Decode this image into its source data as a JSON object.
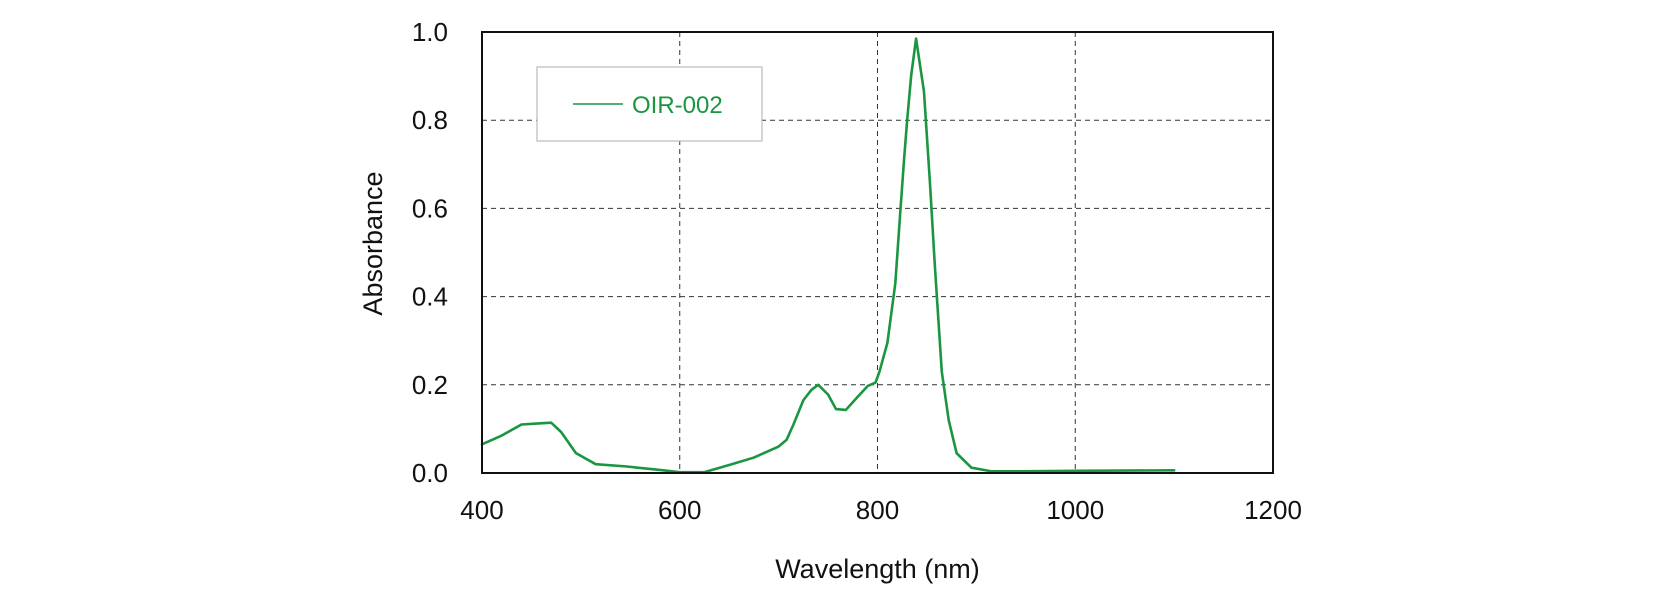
{
  "chart_data": {
    "type": "line",
    "title": "",
    "xlabel": "Wavelength (nm)",
    "ylabel": "Absorbance",
    "xlim": [
      400,
      1200
    ],
    "ylim": [
      0.0,
      1.0
    ],
    "x_ticks": [
      400,
      600,
      800,
      1000,
      1200
    ],
    "x_tick_labels": [
      "400",
      "600",
      "800",
      "1000",
      "1200"
    ],
    "y_ticks": [
      0.0,
      0.2,
      0.4,
      0.6,
      0.8,
      1.0
    ],
    "y_tick_labels": [
      "0.0",
      "0.2",
      "0.4",
      "0.6",
      "0.8",
      "1.0"
    ],
    "grid": true,
    "grid_style": "dashed",
    "legend_position": "top-left",
    "series": [
      {
        "name": "OIR-002",
        "color": "#1a9641",
        "x": [
          400,
          420,
          440,
          455,
          470,
          480,
          495,
          515,
          545,
          575,
          600,
          625,
          650,
          675,
          700,
          708,
          715,
          725,
          733,
          740,
          750,
          758,
          768,
          780,
          790,
          798,
          802,
          810,
          818,
          823,
          827,
          830,
          834,
          839,
          847,
          853,
          858,
          865,
          872,
          880,
          895,
          915,
          945,
          1000,
          1100
        ],
        "values": [
          0.065,
          0.085,
          0.11,
          0.112,
          0.114,
          0.093,
          0.045,
          0.02,
          0.015,
          0.008,
          0.002,
          0.002,
          0.018,
          0.035,
          0.06,
          0.075,
          0.11,
          0.165,
          0.188,
          0.2,
          0.178,
          0.145,
          0.143,
          0.173,
          0.197,
          0.205,
          0.23,
          0.295,
          0.43,
          0.59,
          0.715,
          0.8,
          0.9,
          0.985,
          0.865,
          0.66,
          0.47,
          0.23,
          0.12,
          0.045,
          0.012,
          0.004,
          0.004,
          0.005,
          0.006
        ]
      }
    ]
  }
}
